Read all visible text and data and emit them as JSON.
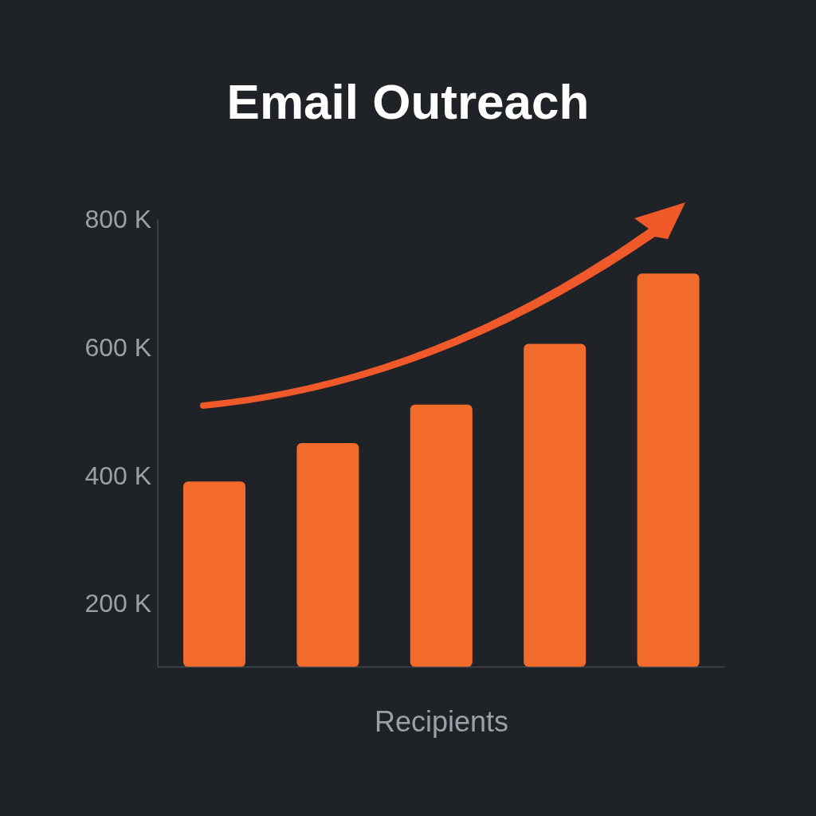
{
  "chart_data": {
    "type": "bar",
    "title": "Email Outreach",
    "xlabel": "Recipients",
    "categories": [
      null,
      null,
      null,
      null,
      null
    ],
    "values": [
      390000,
      450000,
      510000,
      605000,
      715000
    ],
    "color": "#f26b2a",
    "ylim": [
      100000,
      800000
    ],
    "yticks": [
      {
        "value": 200000,
        "label": "200 K"
      },
      {
        "value": 400000,
        "label": "400 K"
      },
      {
        "value": 600000,
        "label": "600 K"
      },
      {
        "value": 800000,
        "label": "800 K"
      }
    ],
    "grid": false,
    "legend": false
  }
}
